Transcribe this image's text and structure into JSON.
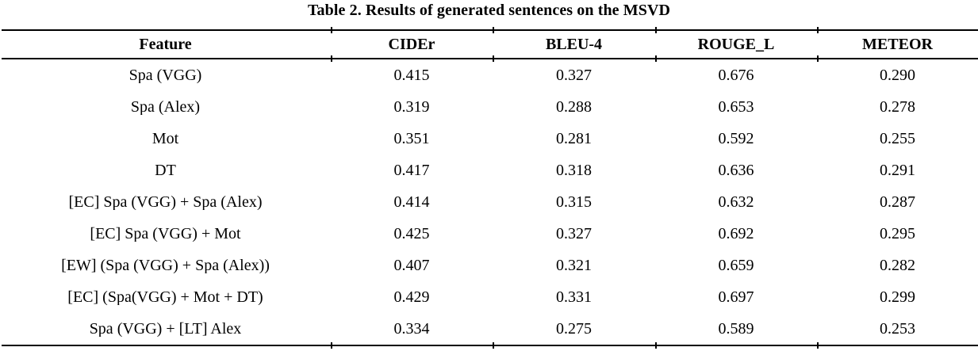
{
  "title": "Table 2. Results of generated sentences on the MSVD",
  "table": {
    "columns": [
      "Feature",
      "CIDEr",
      "BLEU-4",
      "ROUGE_L",
      "METEOR"
    ],
    "rows": [
      {
        "feature": "Spa (VGG)",
        "values": [
          "0.415",
          "0.327",
          "0.676",
          "0.290"
        ]
      },
      {
        "feature": "Spa (Alex)",
        "values": [
          "0.319",
          "0.288",
          "0.653",
          "0.278"
        ]
      },
      {
        "feature": "Mot",
        "values": [
          "0.351",
          "0.281",
          "0.592",
          "0.255"
        ]
      },
      {
        "feature": "DT",
        "values": [
          "0.417",
          "0.318",
          "0.636",
          "0.291"
        ]
      },
      {
        "feature": "[EC] Spa (VGG) + Spa (Alex)",
        "values": [
          "0.414",
          "0.315",
          "0.632",
          "0.287"
        ]
      },
      {
        "feature": "[EC] Spa (VGG) + Mot",
        "values": [
          "0.425",
          "0.327",
          "0.692",
          "0.295"
        ]
      },
      {
        "feature": "[EW] (Spa (VGG) + Spa (Alex))",
        "values": [
          "0.407",
          "0.321",
          "0.659",
          "0.282"
        ]
      },
      {
        "feature": "[EC] (Spa(VGG) + Mot + DT)",
        "values": [
          "0.429",
          "0.331",
          "0.697",
          "0.299"
        ]
      },
      {
        "feature": "Spa (VGG) + [LT] Alex",
        "values": [
          "0.334",
          "0.275",
          "0.589",
          "0.253"
        ]
      }
    ]
  },
  "colors": {
    "text": "#000000",
    "background": "#ffffff",
    "rule": "#000000"
  }
}
